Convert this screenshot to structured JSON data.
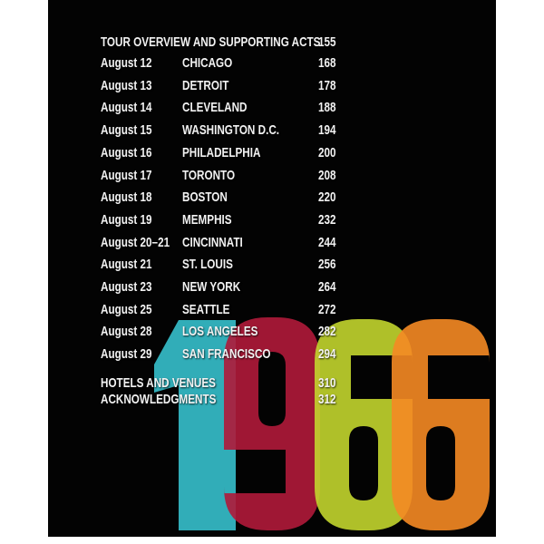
{
  "toc": {
    "header": {
      "title": "TOUR OVERVIEW AND SUPPORTING ACTS",
      "page": "155"
    },
    "entries": [
      {
        "date": "August 12",
        "city": "CHICAGO",
        "page": "168"
      },
      {
        "date": "August 13",
        "city": "DETROIT",
        "page": "178"
      },
      {
        "date": "August 14",
        "city": "CLEVELAND",
        "page": "188"
      },
      {
        "date": "August 15",
        "city": "WASHINGTON D.C.",
        "page": "194"
      },
      {
        "date": "August 16",
        "city": "PHILADELPHIA",
        "page": "200"
      },
      {
        "date": "August 17",
        "city": "TORONTO",
        "page": "208"
      },
      {
        "date": "August 18",
        "city": "BOSTON",
        "page": "220"
      },
      {
        "date": "August 19",
        "city": "MEMPHIS",
        "page": "232"
      },
      {
        "date": "August 20–21",
        "city": "CINCINNATI",
        "page": "244"
      },
      {
        "date": "August 21",
        "city": "ST. LOUIS",
        "page": "256"
      },
      {
        "date": "August 23",
        "city": "NEW YORK",
        "page": "264"
      },
      {
        "date": "August 25",
        "city": "SEATTLE",
        "page": "272"
      },
      {
        "date": "August 28",
        "city": "LOS ANGELES",
        "page": "282"
      },
      {
        "date": "August 29",
        "city": "SAN FRANCISCO",
        "page": "294"
      }
    ],
    "footer": [
      {
        "title": "HOTELS AND VENUES",
        "page": "310"
      },
      {
        "title": "ACKNOWLEDGMENTS",
        "page": "312"
      }
    ]
  },
  "year_graphic": {
    "digits": [
      "1",
      "9",
      "6",
      "6"
    ],
    "colors": [
      "#36c0cc",
      "#b01a3a",
      "#c2d52e",
      "#f58a24"
    ]
  }
}
